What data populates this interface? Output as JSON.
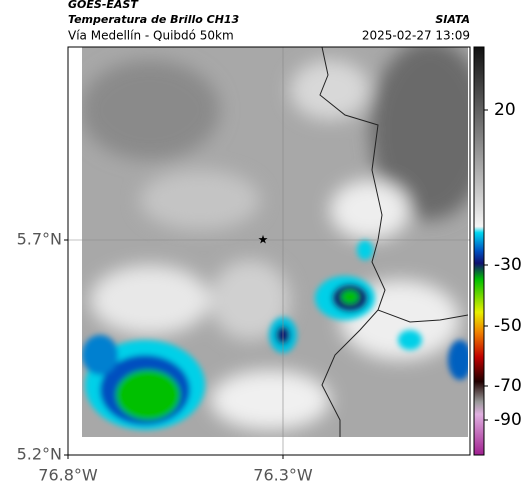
{
  "header": {
    "source": "GOES-EAST",
    "product": "Temperatura de Brillo CH13",
    "org": "SIATA",
    "region": "Vía Medellín - Quibdó 50km",
    "timestamp": "2025-02-27 13:09"
  },
  "map": {
    "lat_labels": [
      "5.7°N",
      "5.2°N"
    ],
    "lon_labels": [
      "76.8°W",
      "76.3°W"
    ]
  },
  "colorbar": {
    "ticks": [
      20,
      -30,
      -50,
      -70,
      -90
    ]
  }
}
